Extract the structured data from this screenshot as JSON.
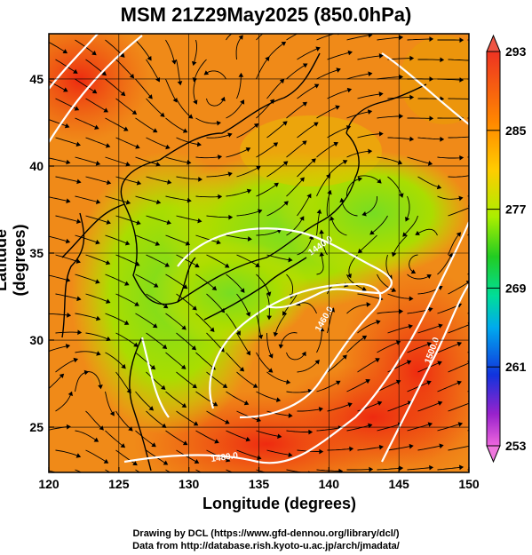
{
  "title": "MSM 21Z29May2025 (850.0hPa)",
  "axes": {
    "xlabel": "Longitude (degrees)",
    "ylabel": "Latitude  (degrees)",
    "xticks": [
      120,
      125,
      130,
      135,
      140,
      145,
      150
    ],
    "yticks": [
      25,
      30,
      35,
      40,
      45
    ],
    "xlim": [
      120,
      150
    ],
    "ylim": [
      22.4,
      47.6
    ]
  },
  "colorbar": {
    "ticks": [
      293,
      285,
      277,
      269,
      261,
      253
    ],
    "range": [
      253,
      293
    ],
    "colors": [
      "#ee66dd",
      "#9922cc",
      "#1133dd",
      "#00aaee",
      "#00dd99",
      "#22cc22",
      "#aaee00",
      "#ffcc00",
      "#ff8800",
      "#ee3322"
    ]
  },
  "contours": [
    {
      "label": "1440.0"
    },
    {
      "label": "1460.0"
    },
    {
      "label": "1480.0"
    },
    {
      "label": "1500.0"
    }
  ],
  "credits": [
    "Drawing by DCL (https://www.gfd-dennou.org/library/dcl/)",
    "Data from http://database.rish.kyoto-u.ac.jp/arch/jmadata/"
  ],
  "icons": [
    "wind-streamline-arrow"
  ]
}
